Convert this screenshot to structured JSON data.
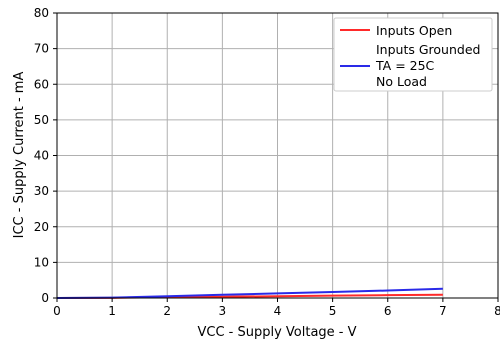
{
  "chart_data": {
    "type": "line",
    "title": "",
    "xlabel": "VCC - Supply Voltage - V",
    "ylabel": "ICC - Supply Current - mA",
    "xlim": [
      0,
      8
    ],
    "ylim": [
      0,
      80
    ],
    "xticks": [
      "0",
      "1",
      "2",
      "3",
      "4",
      "5",
      "6",
      "7",
      "8"
    ],
    "yticks": [
      "0",
      "10",
      "20",
      "30",
      "40",
      "50",
      "60",
      "70",
      "80"
    ],
    "grid": true,
    "legend_position": "top-right",
    "legend_entries": [
      "Inputs Open",
      "Inputs Grounded",
      "TA = 25C",
      "No Load"
    ],
    "series": [
      {
        "name": "Inputs Open",
        "color": "#ff2a2a",
        "x": [
          0,
          1,
          2,
          3,
          4,
          5,
          6,
          7
        ],
        "y": [
          0,
          0.05,
          0.2,
          0.35,
          0.5,
          0.65,
          0.8,
          0.9
        ]
      },
      {
        "name": "Inputs Grounded",
        "color": "#2a2ae8",
        "x": [
          0,
          1,
          2,
          3,
          4,
          5,
          6,
          7
        ],
        "y": [
          0,
          0.1,
          0.5,
          0.9,
          1.3,
          1.7,
          2.1,
          2.6
        ]
      }
    ]
  }
}
